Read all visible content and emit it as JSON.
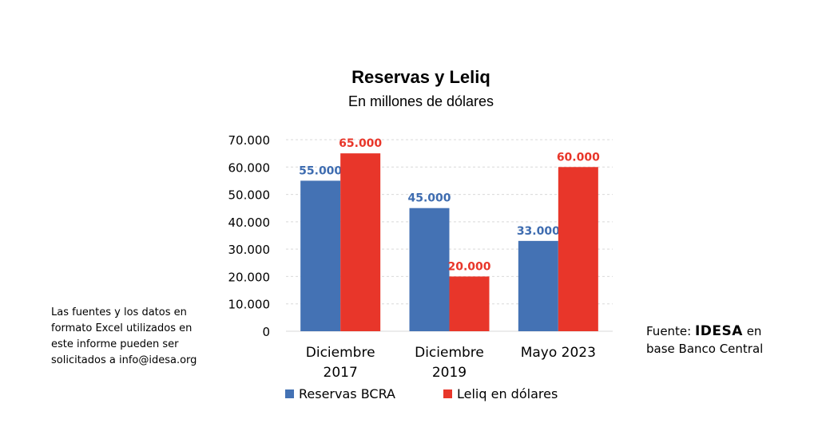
{
  "chart_data": {
    "type": "bar",
    "title": "Reservas y Leliq",
    "subtitle": "En millones de dólares",
    "categories": [
      [
        "Diciembre",
        "2017"
      ],
      [
        "Diciembre",
        "2019"
      ],
      [
        "Mayo 2023"
      ]
    ],
    "series": [
      {
        "name": "Reservas BCRA",
        "color": "#4472B4",
        "label_color": "#3E6CB0",
        "values": [
          55000,
          45000,
          33000
        ],
        "labels": [
          "55.000",
          "45.000",
          "33.000"
        ]
      },
      {
        "name": "Leliq en dólares",
        "color": "#E8362A",
        "label_color": "#E8362A",
        "values": [
          65000,
          20000,
          60000
        ],
        "labels": [
          "65.000",
          "20.000",
          "60.000"
        ]
      }
    ],
    "ylim": [
      0,
      70000
    ],
    "yticks": [
      0,
      10000,
      20000,
      30000,
      40000,
      50000,
      60000,
      70000
    ],
    "ytick_labels": [
      "0",
      "10.000",
      "20.000",
      "30.000",
      "40.000",
      "50.000",
      "60.000",
      "70.000"
    ],
    "grid": true,
    "legend": "bottom"
  },
  "note": "Las fuentes y los datos en formato Excel utilizados en este informe pueden ser solicitados a info@idesa.org",
  "source": {
    "prefix": "Fuente: ",
    "brand": "IDESA",
    "suffix": " en",
    "line2": "base Banco Central"
  }
}
